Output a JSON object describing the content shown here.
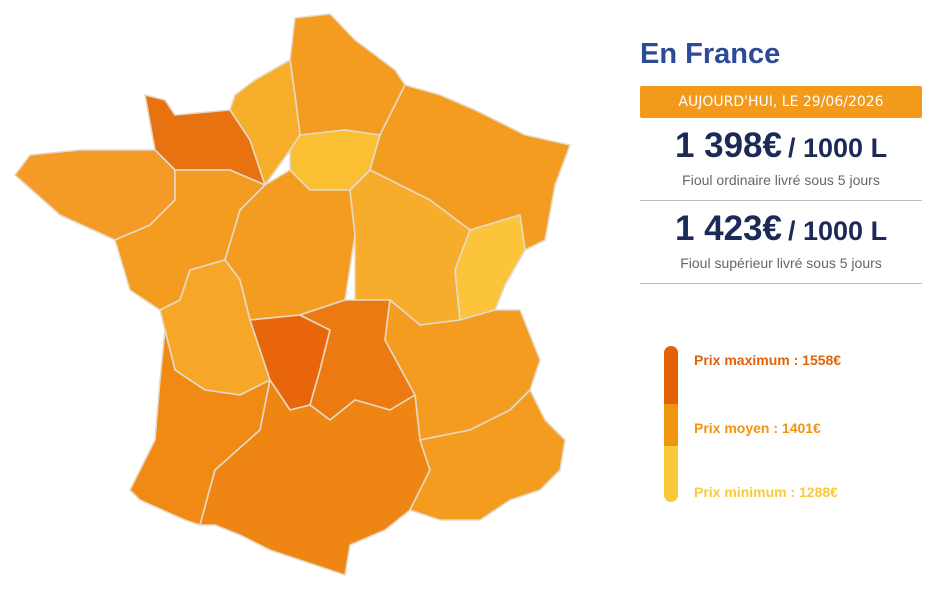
{
  "title": "En France",
  "date_banner": "AUJOURD'HUI, LE 29/06/2026",
  "prices": [
    {
      "price": "1 398€",
      "unit": "/ 1000 L",
      "description": "Fioul ordinaire livré sous 5 jours"
    },
    {
      "price": "1 423€",
      "unit": "/ 1000 L",
      "description": "Fioul supérieur livré sous 5 jours"
    }
  ],
  "legend": [
    {
      "label": "Prix maximum : 1558€",
      "color": "#e2620a"
    },
    {
      "label": "Prix moyen : 1401€",
      "color": "#f0950f"
    },
    {
      "label": "Prix minimum : 1288€",
      "color": "#f9c93a"
    }
  ]
}
